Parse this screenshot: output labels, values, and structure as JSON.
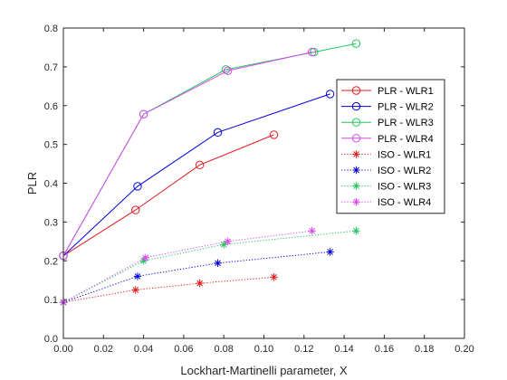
{
  "chart_data": {
    "type": "line",
    "title": "",
    "xlabel": "Lockhart-Martinelli parameter, X",
    "ylabel": "PLR",
    "xlim": [
      0,
      0.2
    ],
    "ylim": [
      0,
      0.8
    ],
    "xticks": [
      0,
      0.02,
      0.04,
      0.06,
      0.08,
      0.1,
      0.12,
      0.14,
      0.16,
      0.18,
      0.2
    ],
    "xtick_labels": [
      "0.00",
      "0.02",
      "0.04",
      "0.06",
      "0.08",
      "0.10",
      "0.12",
      "0.14",
      "0.16",
      "0.18",
      "0.20"
    ],
    "yticks": [
      0,
      0.1,
      0.2,
      0.3,
      0.4,
      0.5,
      0.6,
      0.7,
      0.8
    ],
    "ytick_labels": [
      "0.0",
      "0.1",
      "0.2",
      "0.3",
      "0.4",
      "0.5",
      "0.6",
      "0.7",
      "0.8"
    ],
    "grid": false,
    "legend_position": "right",
    "series": [
      {
        "name": "PLR - WLR1",
        "color": "#e41a1c",
        "line_style": "solid",
        "marker": "circle",
        "x": [
          0,
          0.036,
          0.068,
          0.105
        ],
        "y": [
          0.213,
          0.331,
          0.447,
          0.525
        ]
      },
      {
        "name": "PLR - WLR2",
        "color": "#0000e0",
        "line_style": "solid",
        "marker": "circle",
        "x": [
          0,
          0.037,
          0.077,
          0.133
        ],
        "y": [
          0.213,
          0.392,
          0.531,
          0.63
        ]
      },
      {
        "name": "PLR - WLR3",
        "color": "#22c55e",
        "line_style": "solid",
        "marker": "circle",
        "x": [
          0,
          0.04,
          0.081,
          0.125,
          0.146
        ],
        "y": [
          0.213,
          0.578,
          0.693,
          0.738,
          0.76
        ]
      },
      {
        "name": "PLR - WLR4",
        "color": "#d946ef",
        "line_style": "solid",
        "marker": "circle",
        "x": [
          0,
          0.04,
          0.082,
          0.124
        ],
        "y": [
          0.213,
          0.578,
          0.69,
          0.738
        ]
      },
      {
        "name": "ISO - WLR1",
        "color": "#e41a1c",
        "line_style": "dotted",
        "marker": "star",
        "x": [
          0,
          0.036,
          0.068,
          0.105
        ],
        "y": [
          0.093,
          0.125,
          0.142,
          0.158
        ]
      },
      {
        "name": "ISO - WLR2",
        "color": "#0000e0",
        "line_style": "dotted",
        "marker": "star",
        "x": [
          0,
          0.037,
          0.077,
          0.133
        ],
        "y": [
          0.093,
          0.16,
          0.194,
          0.223
        ]
      },
      {
        "name": "ISO - WLR3",
        "color": "#22c55e",
        "line_style": "dotted",
        "marker": "star",
        "x": [
          0,
          0.04,
          0.08,
          0.146
        ],
        "y": [
          0.093,
          0.2,
          0.242,
          0.277
        ]
      },
      {
        "name": "ISO - WLR4",
        "color": "#d946ef",
        "line_style": "dotted",
        "marker": "star",
        "x": [
          0,
          0.041,
          0.082,
          0.124
        ],
        "y": [
          0.093,
          0.208,
          0.25,
          0.277
        ]
      }
    ]
  }
}
